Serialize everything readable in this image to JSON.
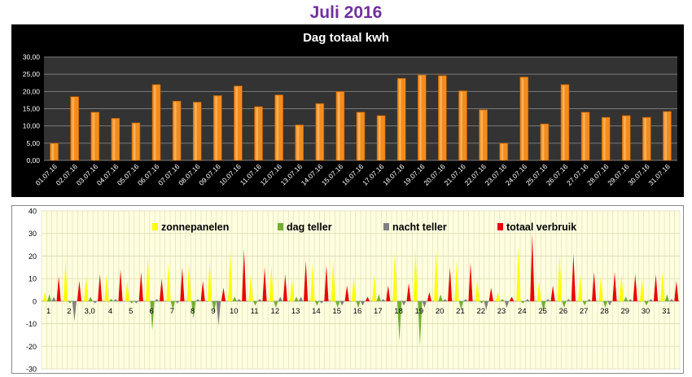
{
  "page": {
    "title": "Juli 2016"
  },
  "chart_data": [
    {
      "type": "bar",
      "title": "Dag totaal kwh",
      "xlabel": "",
      "ylabel": "",
      "ylim": [
        0,
        30
      ],
      "yticks": [
        "0,00",
        "5,00",
        "10,00",
        "15,00",
        "20,00",
        "25,00",
        "30,00"
      ],
      "grid": true,
      "colors": {
        "background": "#000000",
        "plot": "#333333",
        "bar": "#f28c1e",
        "text": "#ffffff"
      },
      "categories": [
        "01.07.16",
        "02.07.16",
        "03.07.16",
        "04.07.16",
        "05.07.16",
        "06.07.16",
        "07.07.16",
        "08.07.16",
        "09.07.16",
        "10.07.16",
        "11.07.16",
        "12.07.16",
        "13.07.16",
        "14.07.16",
        "15.07.16",
        "16.07.16",
        "17.07.16",
        "18.07.16",
        "19.07.16",
        "20.07.16",
        "21.07.16",
        "22.07.16",
        "23.07.16",
        "24.07.16",
        "25.07.16",
        "26.07.16",
        "27.07.16",
        "28.07.16",
        "29.07.16",
        "30.07.16",
        "31.07.16"
      ],
      "values": [
        5.0,
        18.5,
        14.0,
        12.2,
        10.9,
        22.0,
        17.2,
        16.9,
        18.8,
        21.6,
        15.6,
        19.0,
        10.3,
        16.5,
        20.0,
        14.0,
        13.0,
        23.8,
        24.8,
        24.6,
        20.2,
        14.7,
        5.0,
        24.2,
        10.6,
        22.0,
        14.0,
        12.5,
        13.0,
        12.5,
        14.2
      ]
    },
    {
      "type": "area",
      "title": "",
      "xlabel": "",
      "ylabel": "",
      "ylim": [
        -30,
        40
      ],
      "yticks": [
        "-30",
        "-20",
        "-10",
        "0",
        "10",
        "20",
        "30",
        "40"
      ],
      "xticks": [
        "1",
        "2",
        "3,0",
        "4",
        "5",
        "6",
        "7",
        "8",
        "9",
        "10",
        "11",
        "12",
        "13",
        "14",
        "15",
        "16",
        "17",
        "18",
        "19",
        "20",
        "21",
        "22",
        "23",
        "24",
        "25",
        "26",
        "27",
        "28",
        "29",
        "30",
        "31"
      ],
      "grid": true,
      "legend": "top",
      "colors": {
        "plot": "#ffffe0",
        "grid": "#dadab0"
      },
      "series": [
        {
          "name": "zonnepanelen",
          "color": "#ffff00",
          "values": [
            4,
            18,
            11,
            12,
            9,
            20,
            17,
            17,
            18,
            22,
            12,
            16,
            10,
            17,
            18,
            11,
            12,
            22,
            23,
            23,
            18,
            10,
            4,
            24,
            9,
            21,
            12,
            11,
            12,
            10,
            13
          ]
        },
        {
          "name": "dag teller",
          "color": "#70b030",
          "values": [
            3,
            -1,
            2,
            1,
            -1,
            -13,
            -4,
            -8,
            -5,
            2,
            -2,
            -3,
            2,
            -2,
            -3,
            -3,
            3,
            -18,
            -20,
            3,
            -4,
            -1,
            1,
            -1,
            -5,
            -3,
            -2,
            -3,
            2,
            -2,
            3
          ]
        },
        {
          "name": "nacht teller",
          "color": "#808080",
          "values": [
            2,
            -9,
            -1,
            1,
            -1,
            1,
            -1,
            1,
            -11,
            1,
            1,
            2,
            2,
            -1,
            -2,
            -2,
            1,
            -2,
            -3,
            1,
            1,
            -4,
            -3,
            1,
            1,
            1,
            1,
            -2,
            1,
            1,
            1
          ]
        },
        {
          "name": "totaal verbruik",
          "color": "#ee0000",
          "values": [
            11,
            9,
            12,
            14,
            13,
            10,
            15,
            9,
            6,
            23,
            15,
            12,
            18,
            16,
            7,
            2,
            7,
            8,
            4,
            15,
            17,
            6,
            2,
            30,
            7,
            21,
            13,
            13,
            12,
            12,
            9
          ]
        }
      ]
    }
  ]
}
